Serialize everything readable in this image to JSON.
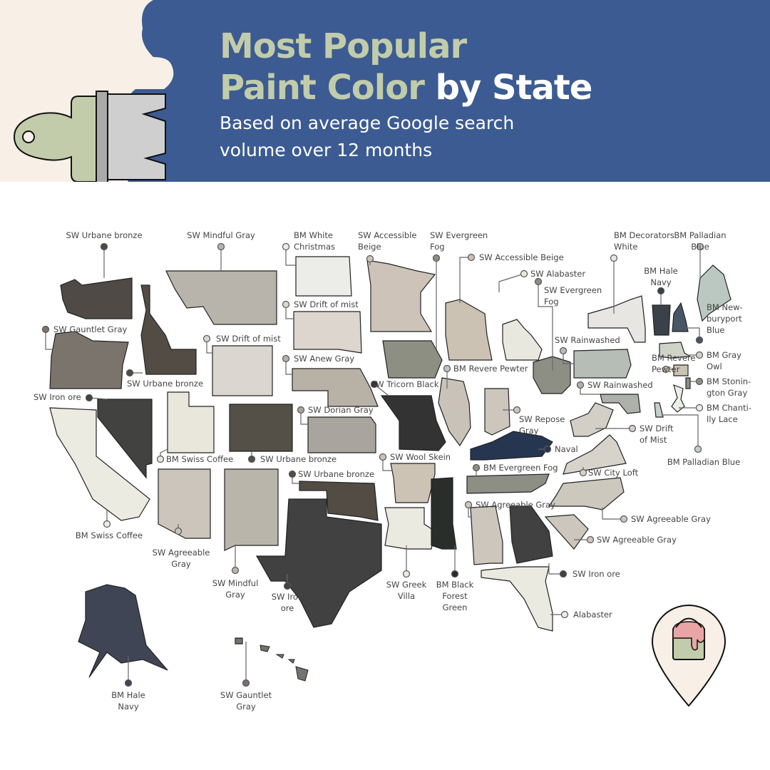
{
  "header": {
    "title_line1": "Most Popular",
    "title_line2_a": "Paint Color",
    "title_line2_b": "by State",
    "subtitle_line1": "Based on average Google search",
    "subtitle_line2": "volume over 12 months"
  },
  "colors": {
    "header_blue": "#3c5b92",
    "title_green": "#c2ccaa",
    "cream": "#f8f0e6"
  },
  "icons": [
    "paintbrush-icon",
    "paint-bucket-pin-icon"
  ],
  "states": [
    {
      "label": [
        "SW Urbane bronze"
      ],
      "fill": "#4f4a45"
    },
    {
      "label": [
        "SW Gauntlet Gray"
      ],
      "fill": "#7a746d"
    },
    {
      "label": [
        "BM Swiss Coffee"
      ],
      "fill": "#ecebe2"
    },
    {
      "label": [
        "SW Iron ore"
      ],
      "fill": "#424240"
    },
    {
      "label": [
        "SW Urbane bronze"
      ],
      "fill": "#524c45"
    },
    {
      "label": [
        "SW Mindful Gray"
      ],
      "fill": "#b8b4ac"
    },
    {
      "label": [
        "SW Drift of mist"
      ],
      "fill": "#dbd6cf"
    },
    {
      "label": [
        "BM Swiss Coffee"
      ],
      "fill": "#e9e6db"
    },
    {
      "label": [
        "SW Urbane bronze"
      ],
      "fill": "#544f47"
    },
    {
      "label": [
        "SW Agreeable",
        "Gray"
      ],
      "fill": "#ccc5bb"
    },
    {
      "label": [
        "SW Mindful",
        "Gray"
      ],
      "fill": "#b9b5ab"
    },
    {
      "label": [
        "BM White",
        "Christmas"
      ],
      "fill": "#ecece8"
    },
    {
      "label": [
        "SW Drift of mist"
      ],
      "fill": "#dcd6cf"
    },
    {
      "label": [
        "SW Anew Gray"
      ],
      "fill": "#b8b1a6"
    },
    {
      "label": [
        "SW Dorian Gray"
      ],
      "fill": "#a9a49d"
    },
    {
      "label": [
        "SW Urbane bronze"
      ],
      "fill": "#524c45"
    },
    {
      "label": [
        "SW Iron",
        "ore"
      ],
      "fill": "#414141"
    },
    {
      "label": [
        "SW Accessible",
        "Beige"
      ],
      "fill": "#cdc3b8"
    },
    {
      "label": [
        "SW Evergreen",
        "Fog"
      ],
      "fill": "#8c8f82"
    },
    {
      "label": [
        "SW Tricorn Black"
      ],
      "fill": "#333333"
    },
    {
      "label": [
        "SW Wool Skein"
      ],
      "fill": "#cdc3b4"
    },
    {
      "label": [
        "SW Greek",
        "Villa"
      ],
      "fill": "#ebeae0"
    },
    {
      "label": [
        "SW Accessible Beige"
      ],
      "fill": "#cbc2b4"
    },
    {
      "label": [
        "SW Alabaster"
      ],
      "fill": "#e9e8df"
    },
    {
      "label": [
        "SW Evergreen",
        "Fog"
      ],
      "fill": "#8e8f84"
    },
    {
      "label": [
        "BM Revere Pewter"
      ],
      "fill": "#c9c2b8"
    },
    {
      "label": [
        "SW Repose",
        "Gray"
      ],
      "fill": "#ccc6bd"
    },
    {
      "label": [
        "Naval"
      ],
      "fill": "#263650"
    },
    {
      "label": [
        "BM Evergreen Fog"
      ],
      "fill": "#8e8f84"
    },
    {
      "label": [
        "BM Black",
        "Forest",
        "Green"
      ],
      "fill": "#2a2e2b"
    },
    {
      "label": [
        "SW Agreeable Gray"
      ],
      "fill": "#cdc6bd"
    },
    {
      "label": [
        "SW Iron ore"
      ],
      "fill": "#414141"
    },
    {
      "label": [
        "Alabaster"
      ],
      "fill": "#ebeae1"
    },
    {
      "label": [
        "SW Agreeable Gray"
      ],
      "fill": "#cdc6bd"
    },
    {
      "label": [
        "SW Agreeable Gray"
      ],
      "fill": "#cdc8be"
    },
    {
      "label": [
        "SW City Loft"
      ],
      "fill": "#d7d3cb"
    },
    {
      "label": [
        "SW Drift",
        "of Mist"
      ],
      "fill": "#d3cfc6"
    },
    {
      "label": [
        "SW Rainwashed"
      ],
      "fill": "#aeb1aa"
    },
    {
      "label": [
        "SW Rainwashed"
      ],
      "fill": "#b6bdb6"
    },
    {
      "label": [
        "BM Decorators",
        "White"
      ],
      "fill": "#e7e6e2"
    },
    {
      "label": [
        "BM Hale",
        "Navy"
      ],
      "fill": "#3b4149"
    },
    {
      "label": [
        "BM New-",
        "buryport",
        "Blue"
      ],
      "fill": "#485567"
    },
    {
      "label": [
        "BM Palladian",
        "Blue"
      ],
      "fill": "#bac8c1"
    },
    {
      "label": [
        "BM Gray",
        "Owl"
      ],
      "fill": "#d0d3c7"
    },
    {
      "label": [
        "BM Revere",
        "Pewter"
      ],
      "fill": "#cdc3b4"
    },
    {
      "label": [
        "BM Stonin-",
        "gton Gray"
      ],
      "fill": "#8e8f84"
    },
    {
      "label": [
        "BM Chanti-",
        "lly Lace"
      ],
      "fill": "#eceee8"
    },
    {
      "label": [
        "BM Palladian Blue"
      ],
      "fill": "#c4d0ca"
    },
    {
      "label": [
        "BM Hale",
        "Navy"
      ],
      "fill": "#3f4554"
    },
    {
      "label": [
        "SW Gauntlet",
        "Gray"
      ],
      "fill": "#77726c"
    }
  ]
}
